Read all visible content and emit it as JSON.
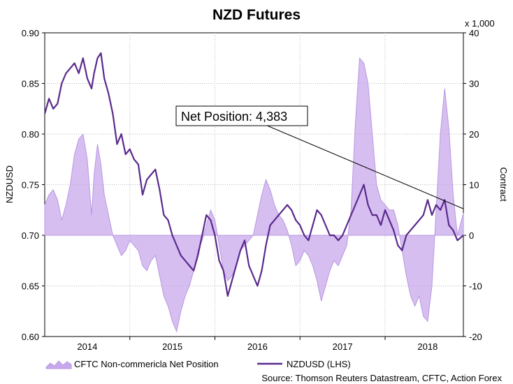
{
  "chart_data": {
    "type": "line",
    "title": "NZD Futures",
    "ylabel_left": "NZDUSD",
    "ylabel_right": "Contract",
    "right_axis_unit": "x 1,000",
    "x_tick_labels": [
      "2014",
      "2015",
      "2016",
      "2017",
      "2018"
    ],
    "ylim_left": [
      0.6,
      0.9
    ],
    "yticks_left": [
      "0.60",
      "0.65",
      "0.70",
      "0.75",
      "0.80",
      "0.85",
      "0.90"
    ],
    "ylim_right": [
      -20,
      40
    ],
    "yticks_right": [
      "-20",
      "-10",
      "0",
      "10",
      "20",
      "30",
      "40"
    ],
    "xlim": [
      2013.5,
      2018.42
    ],
    "grid": true,
    "legend_position": "bottom-left",
    "annotation": {
      "text": "Net Position: 4,383",
      "x": 2018.42,
      "y": 4.383
    },
    "source": "Source: Thomson Reuters Datastream, CFTC, Action Forex",
    "series": [
      {
        "name": "CFTC Non-commericla Net Position",
        "type": "area",
        "axis": "right",
        "color": "#c8a8ec",
        "x": [
          2013.5,
          2013.55,
          2013.6,
          2013.65,
          2013.7,
          2013.75,
          2013.8,
          2013.85,
          2013.9,
          2013.95,
          2014.0,
          2014.05,
          2014.08,
          2014.12,
          2014.16,
          2014.2,
          2014.25,
          2014.3,
          2014.35,
          2014.4,
          2014.45,
          2014.5,
          2014.55,
          2014.6,
          2014.65,
          2014.7,
          2014.75,
          2014.8,
          2014.85,
          2014.9,
          2014.95,
          2015.0,
          2015.05,
          2015.1,
          2015.15,
          2015.2,
          2015.25,
          2015.3,
          2015.35,
          2015.4,
          2015.45,
          2015.5,
          2015.55,
          2015.6,
          2015.65,
          2015.7,
          2015.75,
          2015.8,
          2015.85,
          2015.9,
          2015.95,
          2016.0,
          2016.05,
          2016.1,
          2016.15,
          2016.2,
          2016.25,
          2016.3,
          2016.35,
          2016.4,
          2016.45,
          2016.5,
          2016.55,
          2016.6,
          2016.65,
          2016.7,
          2016.75,
          2016.8,
          2016.85,
          2016.9,
          2016.95,
          2017.0,
          2017.05,
          2017.1,
          2017.15,
          2017.2,
          2017.25,
          2017.3,
          2017.35,
          2017.4,
          2017.45,
          2017.5,
          2017.55,
          2017.6,
          2017.65,
          2017.7,
          2017.75,
          2017.8,
          2017.85,
          2017.9,
          2017.95,
          2018.0,
          2018.05,
          2018.1,
          2018.15,
          2018.2,
          2018.25,
          2018.3,
          2018.35,
          2018.42
        ],
        "values": [
          6,
          8,
          9,
          7,
          3,
          6,
          10,
          16,
          19,
          20,
          15,
          4,
          12,
          18,
          14,
          8,
          4,
          0,
          -2,
          -4,
          -3,
          -1,
          -2,
          -3,
          -6,
          -7,
          -5,
          -4,
          -8,
          -12,
          -14,
          -17,
          -19,
          -15,
          -12,
          -10,
          -7,
          -3,
          -1,
          2,
          5,
          3,
          -2,
          -7,
          -9,
          -8,
          -6,
          -3,
          -2,
          -1,
          0,
          4,
          8,
          11,
          9,
          6,
          4,
          3,
          1,
          -2,
          -6,
          -5,
          -3,
          -4,
          -6,
          -9,
          -13,
          -10,
          -7,
          -5,
          -6,
          -4,
          -2,
          5,
          22,
          35,
          34,
          30,
          20,
          10,
          7,
          6,
          5,
          5,
          2,
          -3,
          -8,
          -12,
          -14,
          -12,
          -16,
          -17,
          -10,
          5,
          20,
          29,
          21,
          8,
          0,
          4.383
        ]
      },
      {
        "name": "NZDUSD (LHS)",
        "type": "line",
        "axis": "left",
        "color": "#5a2a8c",
        "x": [
          2013.5,
          2013.55,
          2013.6,
          2013.65,
          2013.7,
          2013.75,
          2013.8,
          2013.85,
          2013.9,
          2013.95,
          2014.0,
          2014.05,
          2014.08,
          2014.12,
          2014.16,
          2014.2,
          2014.25,
          2014.3,
          2014.35,
          2014.4,
          2014.45,
          2014.5,
          2014.55,
          2014.6,
          2014.65,
          2014.7,
          2014.75,
          2014.8,
          2014.85,
          2014.9,
          2014.95,
          2015.0,
          2015.05,
          2015.1,
          2015.15,
          2015.2,
          2015.25,
          2015.3,
          2015.35,
          2015.4,
          2015.45,
          2015.5,
          2015.55,
          2015.6,
          2015.65,
          2015.7,
          2015.75,
          2015.8,
          2015.85,
          2015.9,
          2015.95,
          2016.0,
          2016.05,
          2016.1,
          2016.15,
          2016.2,
          2016.25,
          2016.3,
          2016.35,
          2016.4,
          2016.45,
          2016.5,
          2016.55,
          2016.6,
          2016.65,
          2016.7,
          2016.75,
          2016.8,
          2016.85,
          2016.9,
          2016.95,
          2017.0,
          2017.05,
          2017.1,
          2017.15,
          2017.2,
          2017.25,
          2017.3,
          2017.35,
          2017.4,
          2017.45,
          2017.5,
          2017.55,
          2017.6,
          2017.65,
          2017.7,
          2017.75,
          2017.8,
          2017.85,
          2017.9,
          2017.95,
          2018.0,
          2018.05,
          2018.1,
          2018.15,
          2018.2,
          2018.25,
          2018.3,
          2018.35,
          2018.42
        ],
        "values": [
          0.82,
          0.835,
          0.825,
          0.83,
          0.85,
          0.86,
          0.865,
          0.87,
          0.86,
          0.875,
          0.855,
          0.845,
          0.86,
          0.875,
          0.88,
          0.855,
          0.84,
          0.82,
          0.79,
          0.8,
          0.78,
          0.785,
          0.775,
          0.77,
          0.74,
          0.755,
          0.76,
          0.765,
          0.745,
          0.72,
          0.715,
          0.7,
          0.69,
          0.68,
          0.675,
          0.67,
          0.665,
          0.68,
          0.7,
          0.72,
          0.715,
          0.7,
          0.675,
          0.665,
          0.64,
          0.655,
          0.67,
          0.685,
          0.695,
          0.67,
          0.66,
          0.65,
          0.665,
          0.69,
          0.71,
          0.715,
          0.72,
          0.725,
          0.73,
          0.725,
          0.715,
          0.71,
          0.7,
          0.695,
          0.71,
          0.725,
          0.72,
          0.71,
          0.7,
          0.7,
          0.695,
          0.7,
          0.71,
          0.72,
          0.73,
          0.74,
          0.75,
          0.73,
          0.72,
          0.72,
          0.71,
          0.725,
          0.715,
          0.705,
          0.69,
          0.685,
          0.7,
          0.705,
          0.71,
          0.715,
          0.72,
          0.735,
          0.72,
          0.73,
          0.725,
          0.735,
          0.71,
          0.705,
          0.695,
          0.7
        ]
      }
    ]
  }
}
